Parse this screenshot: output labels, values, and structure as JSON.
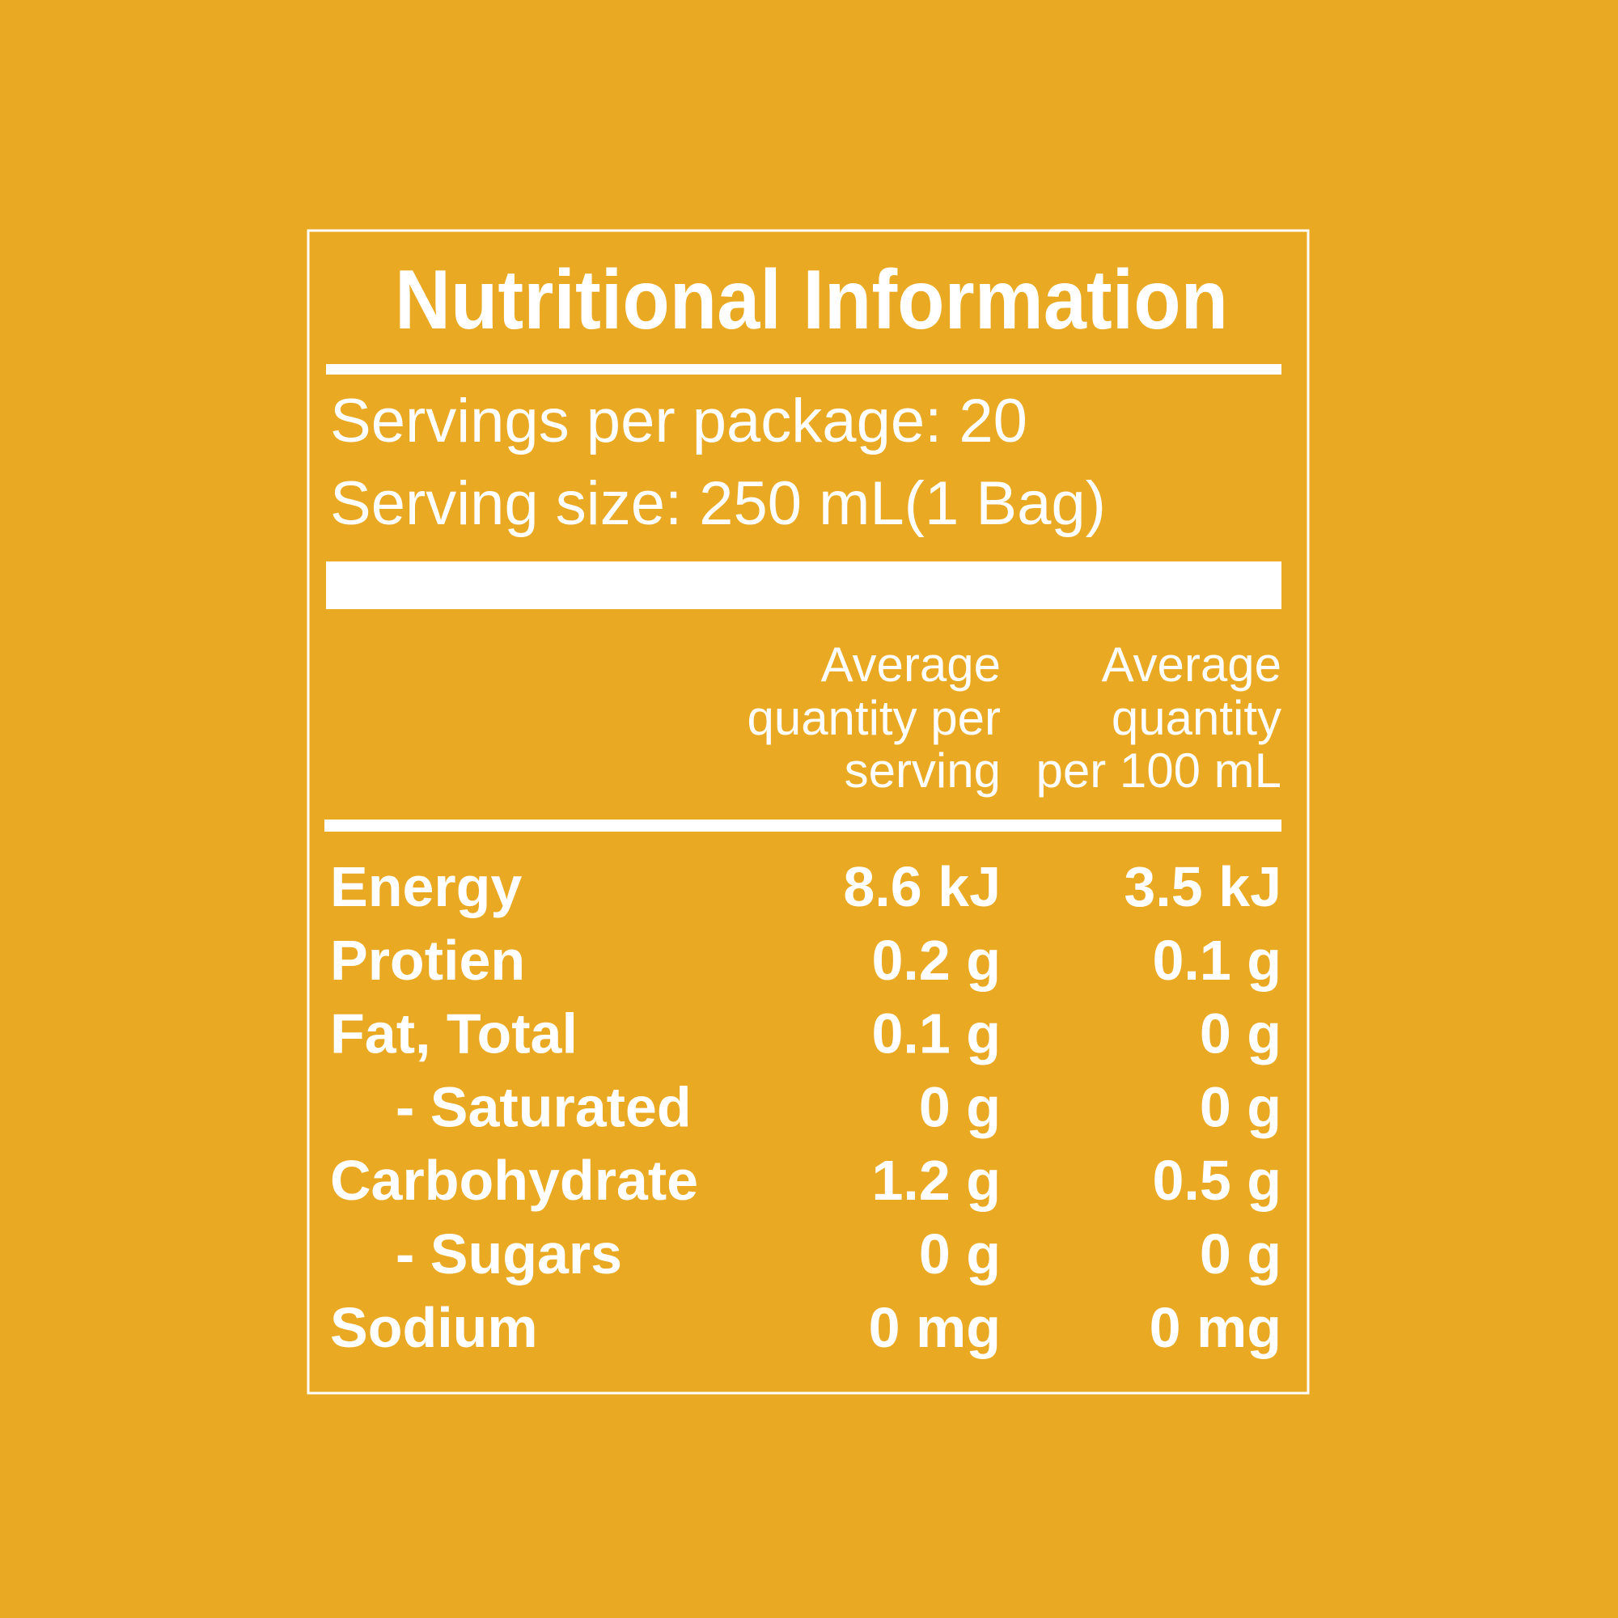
{
  "header": {
    "title": "Nutritional Information"
  },
  "servings": [
    "Servings per package: 20",
    "Serving size: 250 mL(1 Bag)"
  ],
  "column_headers": [
    {
      "lines": [
        "Average",
        "quantity per",
        "serving"
      ]
    },
    {
      "lines": [
        "Average",
        "quantity",
        "per 100 mL"
      ]
    }
  ],
  "rows": [
    {
      "label": "Energy",
      "per_serving": "8.6 kJ",
      "per_100ml": "3.5 kJ",
      "indent": false
    },
    {
      "label": "Protien",
      "per_serving": "0.2 g",
      "per_100ml": "0.1 g",
      "indent": false
    },
    {
      "label": "Fat, Total",
      "per_serving": "0.1 g",
      "per_100ml": "0 g",
      "indent": false
    },
    {
      "label": "- Saturated",
      "per_serving": "0 g",
      "per_100ml": "0 g",
      "indent": true
    },
    {
      "label": "Carbohydrate",
      "per_serving": "1.2 g",
      "per_100ml": "0.5 g",
      "indent": false
    },
    {
      "label": "- Sugars",
      "per_serving": "0 g",
      "per_100ml": "0 g",
      "indent": true
    },
    {
      "label": "Sodium",
      "per_serving": "0 mg",
      "per_100ml": "0 mg",
      "indent": false
    }
  ]
}
